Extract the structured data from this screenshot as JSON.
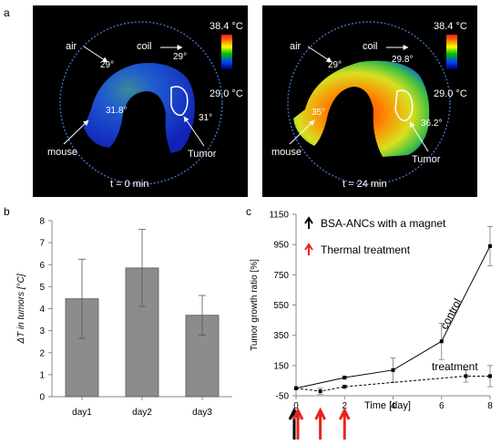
{
  "panels": {
    "a": "a",
    "b": "b",
    "c": "c"
  },
  "thermal": {
    "scale_max": "38.4 °C",
    "scale_min": "29.0 °C",
    "left": {
      "time": "t = 0 min",
      "air_label": "air",
      "air_temp": "29°",
      "coil_label": "coil",
      "coil_temp": "29°",
      "mouse_label": "mouse",
      "mouse_temp": "31.8°",
      "tumor_label": "Tumor",
      "tumor_temp": "31°"
    },
    "right": {
      "time": "t = 24 min",
      "air_label": "air",
      "air_temp": "29°",
      "coil_label": "coil",
      "coil_temp": "29.8°",
      "mouse_label": "mouse",
      "mouse_temp": "35°",
      "tumor_label": "Tumor",
      "tumor_temp": "36.2°"
    }
  },
  "chart_data": [
    {
      "type": "bar",
      "categories": [
        "day1",
        "day2",
        "day3"
      ],
      "values": [
        4.45,
        5.85,
        3.7
      ],
      "errors": [
        1.8,
        1.75,
        0.9
      ],
      "ylabel": "ΔT in tumors [°C]",
      "xlabel": "",
      "ylim": [
        0,
        8
      ],
      "yticks": [
        "0",
        "1",
        "2",
        "3",
        "4",
        "5",
        "6",
        "7",
        "8"
      ],
      "bar_color": "#8c8c8c"
    },
    {
      "type": "line",
      "xlabel": "Time [day]",
      "ylabel": "Tumor growth ratio [%]",
      "xlim": [
        0,
        8
      ],
      "ylim": [
        -50,
        1150
      ],
      "xticks": [
        "0",
        "2",
        "4",
        "6",
        "8"
      ],
      "yticks": [
        "-50",
        "150",
        "350",
        "550",
        "750",
        "950",
        "1150"
      ],
      "series": [
        {
          "name": "control",
          "style": "solid",
          "x": [
            0,
            2,
            4,
            6,
            8
          ],
          "y": [
            0,
            70,
            120,
            310,
            940
          ],
          "err": [
            0,
            10,
            80,
            120,
            130
          ]
        },
        {
          "name": "treatment",
          "style": "dashed",
          "x": [
            0,
            1,
            2,
            7,
            8
          ],
          "y": [
            0,
            -20,
            10,
            80,
            80
          ],
          "err": [
            0,
            20,
            10,
            40,
            70
          ]
        }
      ],
      "legend": [
        {
          "label": "BSA-ANCs  with a magnet",
          "color": "#000000"
        },
        {
          "label": "Thermal treatment",
          "color": "#e8231e"
        }
      ],
      "arrows": [
        {
          "x": 0,
          "color": "#000000"
        },
        {
          "x": 0,
          "color": "#e8231e"
        },
        {
          "x": 1,
          "color": "#e8231e"
        },
        {
          "x": 2,
          "color": "#e8231e"
        }
      ]
    }
  ]
}
